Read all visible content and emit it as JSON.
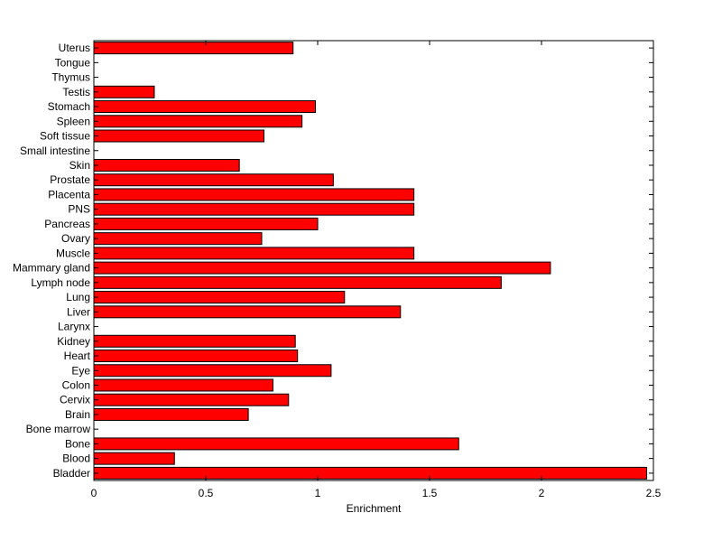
{
  "chart_data": {
    "type": "bar",
    "orientation": "horizontal",
    "title": "",
    "xlabel": "Enrichment",
    "ylabel": "",
    "xlim": [
      0,
      2.5
    ],
    "xticks": [
      0,
      0.5,
      1,
      1.5,
      2,
      2.5
    ],
    "xtick_labels": [
      "0",
      "0.5",
      "1",
      "1.5",
      "2",
      "2.5"
    ],
    "grid": false,
    "legend": "none",
    "bar_color": "#ff0000",
    "edge_color": "#000000",
    "categories": [
      "Bladder",
      "Blood",
      "Bone",
      "Bone marrow",
      "Brain",
      "Cervix",
      "Colon",
      "Eye",
      "Heart",
      "Kidney",
      "Larynx",
      "Liver",
      "Lung",
      "Lymph node",
      "Mammary gland",
      "Muscle",
      "Ovary",
      "Pancreas",
      "PNS",
      "Placenta",
      "Prostate",
      "Skin",
      "Small intestine",
      "Soft tissue",
      "Spleen",
      "Stomach",
      "Testis",
      "Thymus",
      "Tongue",
      "Uterus"
    ],
    "values": [
      2.47,
      0.36,
      1.63,
      0,
      0.69,
      0.87,
      0.8,
      1.06,
      0.91,
      0.9,
      0,
      1.37,
      1.12,
      1.82,
      2.04,
      1.43,
      0.75,
      1.0,
      1.43,
      1.43,
      1.07,
      0.65,
      0,
      0.76,
      0.93,
      0.99,
      0.27,
      0,
      0,
      0.89
    ]
  }
}
